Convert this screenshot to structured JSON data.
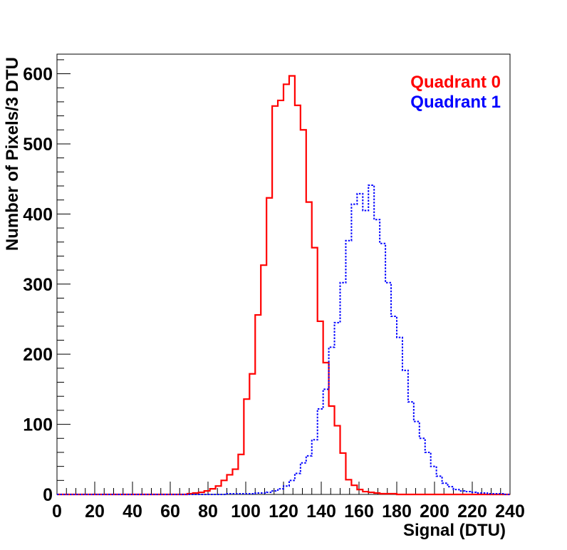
{
  "chart_data": {
    "type": "histogram",
    "xlabel": "Signal (DTU)",
    "ylabel": "Number of Pixels/3 DTU",
    "xlim": [
      0,
      240
    ],
    "ylim": [
      0,
      628
    ],
    "bin_width": 3,
    "x_ticks": [
      0,
      20,
      40,
      60,
      80,
      100,
      120,
      140,
      160,
      180,
      200,
      220,
      240
    ],
    "y_ticks": [
      0,
      100,
      200,
      300,
      400,
      500,
      600
    ],
    "grid": false,
    "legend_position": "top-right",
    "series": [
      {
        "name": "Quadrant 0",
        "color": "#ff0000",
        "line_style": "solid",
        "bin_starts": [
          0,
          3,
          6,
          9,
          12,
          15,
          18,
          21,
          24,
          27,
          30,
          33,
          36,
          39,
          42,
          45,
          48,
          51,
          54,
          57,
          60,
          63,
          66,
          69,
          72,
          75,
          78,
          81,
          84,
          87,
          90,
          93,
          96,
          99,
          102,
          105,
          108,
          111,
          114,
          117,
          120,
          123,
          126,
          129,
          132,
          135,
          138,
          141,
          144,
          147,
          150,
          153,
          156,
          159,
          162,
          165,
          168,
          171,
          174,
          177,
          180,
          183,
          186,
          189,
          192,
          195,
          198,
          201,
          204,
          207,
          210,
          213,
          216,
          219,
          222,
          225,
          228,
          231,
          234,
          237
        ],
        "values": [
          0,
          0,
          0,
          0,
          0,
          0,
          0,
          0,
          0,
          0,
          0,
          0,
          0,
          0,
          0,
          0,
          0,
          0,
          0,
          0,
          0,
          0,
          0,
          1,
          2,
          3,
          5,
          8,
          12,
          20,
          28,
          36,
          57,
          136,
          172,
          256,
          327,
          423,
          554,
          562,
          585,
          597,
          555,
          520,
          417,
          352,
          247,
          188,
          126,
          98,
          59,
          21,
          13,
          7,
          4,
          3,
          2,
          1,
          1,
          1,
          0,
          0,
          0,
          0,
          0,
          0,
          0,
          0,
          0,
          0,
          0,
          0,
          0,
          0,
          0,
          0,
          0,
          0,
          0,
          0
        ]
      },
      {
        "name": "Quadrant 1",
        "color": "#0000ff",
        "line_style": "dotted",
        "bin_starts": [
          0,
          3,
          6,
          9,
          12,
          15,
          18,
          21,
          24,
          27,
          30,
          33,
          36,
          39,
          42,
          45,
          48,
          51,
          54,
          57,
          60,
          63,
          66,
          69,
          72,
          75,
          78,
          81,
          84,
          87,
          90,
          93,
          96,
          99,
          102,
          105,
          108,
          111,
          114,
          117,
          120,
          123,
          126,
          129,
          132,
          135,
          138,
          141,
          144,
          147,
          150,
          153,
          156,
          159,
          162,
          165,
          168,
          171,
          174,
          177,
          180,
          183,
          186,
          189,
          192,
          195,
          198,
          201,
          204,
          207,
          210,
          213,
          216,
          219,
          222,
          225,
          228,
          231,
          234,
          237
        ],
        "values": [
          0,
          0,
          0,
          0,
          0,
          0,
          0,
          0,
          0,
          0,
          0,
          0,
          0,
          0,
          0,
          0,
          0,
          0,
          0,
          0,
          0,
          0,
          0,
          0,
          0,
          0,
          0,
          0,
          0,
          0,
          1,
          1,
          1,
          1,
          1,
          2,
          2,
          3,
          5,
          8,
          12,
          20,
          30,
          45,
          55,
          78,
          122,
          150,
          210,
          245,
          302,
          362,
          414,
          429,
          405,
          441,
          392,
          358,
          302,
          254,
          224,
          177,
          132,
          104,
          80,
          60,
          40,
          26,
          16,
          11,
          7,
          5,
          4,
          3,
          2,
          2,
          1,
          1,
          1,
          0
        ]
      }
    ]
  }
}
